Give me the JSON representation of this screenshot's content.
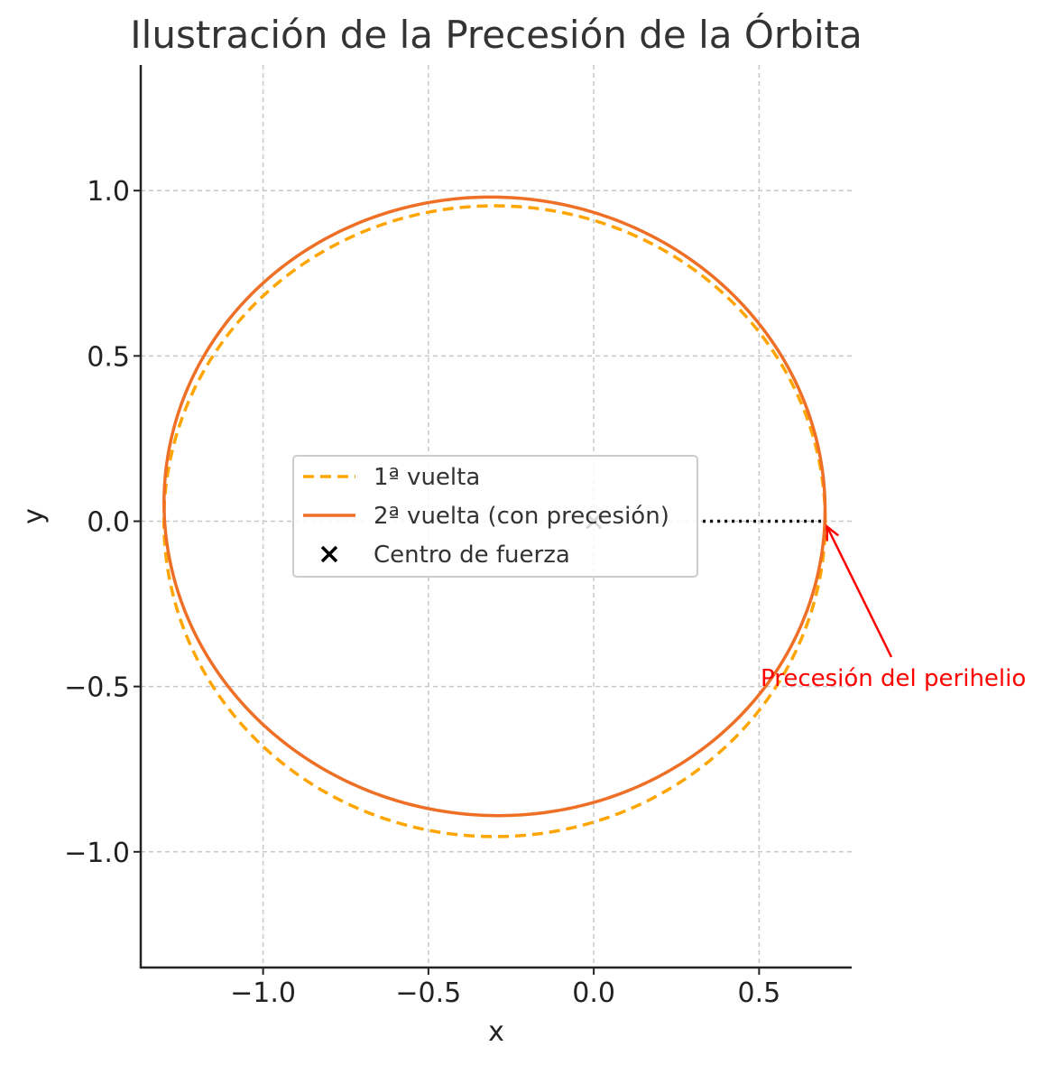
{
  "chart_data": {
    "type": "line",
    "title": "Ilustración de la Precesión de la Órbita",
    "xlabel": "x",
    "ylabel": "y",
    "xlim": [
      -1.37,
      0.78
    ],
    "ylim": [
      -1.35,
      1.38
    ],
    "xticks": [
      -1.0,
      -0.5,
      0.0,
      0.5
    ],
    "yticks": [
      -1.0,
      -0.5,
      0.0,
      0.5,
      1.0
    ],
    "xtick_labels": [
      "−1.0",
      "−0.5",
      "0.0",
      "0.5"
    ],
    "ytick_labels": [
      "−1.0",
      "−0.5",
      "0.0",
      "0.5",
      "1.0"
    ],
    "grid": true,
    "legend_position": "center",
    "series": [
      {
        "name": "1ª vuelta",
        "style": "dashed",
        "color": "#FFA500",
        "ellipse": {
          "center": [
            -0.3,
            0.0
          ],
          "semi_major": 1.0,
          "semi_minor": 0.954,
          "rotation_deg": 0
        }
      },
      {
        "name": "2ª vuelta (con precesión)",
        "style": "solid",
        "color": "#EE6F25",
        "ellipse": {
          "center": [
            -0.3,
            0.045
          ],
          "semi_major": 1.0,
          "semi_minor": 0.935,
          "rotation_deg": -5
        }
      }
    ],
    "markers": [
      {
        "name": "Centro de fuerza",
        "x": 0.0,
        "y": 0.0,
        "marker": "x",
        "color": "#000000"
      }
    ],
    "reference_line": {
      "x": [
        0.33,
        0.7
      ],
      "y": [
        0.0,
        0.0
      ],
      "style": "dotted",
      "color": "#111111"
    },
    "annotation": {
      "text": "Precesión del perihelio",
      "xy": [
        0.7,
        0.0
      ],
      "xytext": [
        0.5,
        -0.5
      ],
      "color": "#FF0000"
    }
  }
}
